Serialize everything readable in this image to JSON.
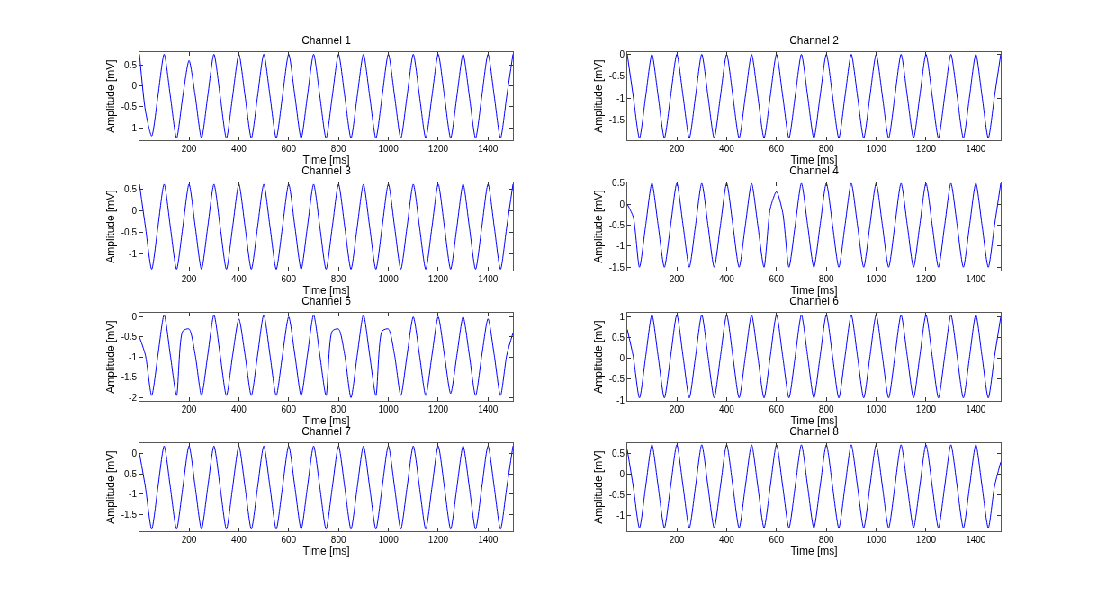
{
  "chart_data": [
    {
      "type": "line",
      "title": "Channel 1",
      "xlabel": "Time [ms]",
      "ylabel": "Amplitude [mV]",
      "xlim": [
        1,
        1500
      ],
      "xticks": [
        200,
        400,
        600,
        800,
        1000,
        1200,
        1400
      ],
      "ylim": [
        -1.3,
        0.8
      ],
      "yticks": [
        -1,
        -0.5,
        0,
        0.5
      ],
      "x": [
        1,
        25,
        50,
        75,
        100,
        125,
        150,
        175,
        200,
        225,
        250,
        275,
        300,
        325,
        350,
        375,
        400,
        425,
        450,
        475,
        500,
        525,
        550,
        575,
        600,
        625,
        650,
        675,
        700,
        725,
        750,
        775,
        800,
        825,
        850,
        875,
        900,
        925,
        950,
        975,
        1000,
        1025,
        1050,
        1075,
        1100,
        1125,
        1150,
        1175,
        1200,
        1225,
        1250,
        1275,
        1300,
        1325,
        1350,
        1375,
        1400,
        1425,
        1450,
        1475,
        1500
      ],
      "series": [
        {
          "color": "#0000ff",
          "values": [
            0.75,
            -0.6,
            -1.2,
            -0.25,
            0.75,
            -0.25,
            -1.25,
            -0.25,
            0.6,
            -0.25,
            -1.25,
            -0.25,
            0.75,
            -0.25,
            -1.25,
            -0.25,
            0.75,
            -0.25,
            -1.25,
            -0.25,
            0.75,
            -0.25,
            -1.25,
            -0.25,
            0.75,
            -0.25,
            -1.25,
            -0.25,
            0.75,
            -0.25,
            -1.25,
            -0.25,
            0.75,
            -0.25,
            -1.25,
            -0.25,
            0.75,
            -0.25,
            -1.25,
            -0.25,
            0.75,
            -0.25,
            -1.25,
            -0.25,
            0.75,
            -0.25,
            -1.25,
            -0.25,
            0.75,
            -0.25,
            -1.25,
            -0.25,
            0.75,
            -0.25,
            -1.25,
            -0.25,
            0.75,
            -0.25,
            -1.25,
            -0.25,
            0.75
          ]
        }
      ]
    },
    {
      "type": "line",
      "title": "Channel 2",
      "xlabel": "Time [ms]",
      "ylabel": "Amplitude [mV]",
      "xlim": [
        1,
        1500
      ],
      "xticks": [
        200,
        400,
        600,
        800,
        1000,
        1200,
        1400
      ],
      "ylim": [
        -1.95,
        0.05
      ],
      "yticks": [
        -1.5,
        -1,
        -0.5,
        0
      ],
      "x": [
        1,
        25,
        50,
        75,
        100,
        125,
        150,
        175,
        200,
        225,
        250,
        275,
        300,
        325,
        350,
        375,
        400,
        425,
        450,
        475,
        500,
        525,
        550,
        575,
        600,
        625,
        650,
        675,
        700,
        725,
        750,
        775,
        800,
        825,
        850,
        875,
        900,
        925,
        950,
        975,
        1000,
        1025,
        1050,
        1075,
        1100,
        1125,
        1150,
        1175,
        1200,
        1225,
        1250,
        1275,
        1300,
        1325,
        1350,
        1375,
        1400,
        1425,
        1450,
        1475,
        1500
      ],
      "series": [
        {
          "color": "#0000ff",
          "values": [
            0,
            -0.95,
            -1.9,
            -0.95,
            0,
            -0.95,
            -1.9,
            -0.95,
            0,
            -0.95,
            -1.9,
            -0.95,
            0,
            -0.95,
            -1.9,
            -0.95,
            0,
            -0.95,
            -1.9,
            -0.95,
            0,
            -0.95,
            -1.9,
            -0.95,
            0,
            -0.95,
            -1.9,
            -0.95,
            0,
            -0.95,
            -1.9,
            -0.95,
            0,
            -0.95,
            -1.9,
            -0.95,
            0,
            -0.95,
            -1.9,
            -0.95,
            0,
            -0.95,
            -1.9,
            -0.95,
            0,
            -0.95,
            -1.9,
            -0.95,
            0,
            -0.95,
            -1.9,
            -0.95,
            0,
            -0.95,
            -1.9,
            -0.95,
            0,
            -0.95,
            -1.9,
            -0.95,
            0
          ]
        }
      ]
    },
    {
      "type": "line",
      "title": "Channel 3",
      "xlabel": "Time [ms]",
      "ylabel": "Amplitude [mV]",
      "xlim": [
        1,
        1500
      ],
      "xticks": [
        200,
        400,
        600,
        800,
        1000,
        1200,
        1400
      ],
      "ylim": [
        -1.38,
        0.66
      ],
      "yticks": [
        -1,
        -0.5,
        0,
        0.5
      ],
      "x": [
        1,
        25,
        50,
        75,
        100,
        125,
        150,
        175,
        200,
        225,
        250,
        275,
        300,
        325,
        350,
        375,
        400,
        425,
        450,
        475,
        500,
        525,
        550,
        575,
        600,
        625,
        650,
        675,
        700,
        725,
        750,
        775,
        800,
        825,
        850,
        875,
        900,
        925,
        950,
        975,
        1000,
        1025,
        1050,
        1075,
        1100,
        1125,
        1150,
        1175,
        1200,
        1225,
        1250,
        1275,
        1300,
        1325,
        1350,
        1375,
        1400,
        1425,
        1450,
        1475,
        1500
      ],
      "series": [
        {
          "color": "#0000ff",
          "values": [
            0.62,
            -0.37,
            -1.35,
            -0.37,
            0.62,
            -0.37,
            -1.35,
            -0.37,
            0.62,
            -0.37,
            -1.35,
            -0.37,
            0.62,
            -0.37,
            -1.35,
            -0.37,
            0.62,
            -0.37,
            -1.35,
            -0.37,
            0.62,
            -0.37,
            -1.35,
            -0.37,
            0.62,
            -0.37,
            -1.35,
            -0.37,
            0.62,
            -0.37,
            -1.35,
            -0.37,
            0.62,
            -0.37,
            -1.35,
            -0.37,
            0.62,
            -0.37,
            -1.35,
            -0.37,
            0.62,
            -0.37,
            -1.35,
            -0.37,
            0.62,
            -0.37,
            -1.35,
            -0.37,
            0.62,
            -0.37,
            -1.35,
            -0.37,
            0.62,
            -0.37,
            -1.35,
            -0.37,
            0.62,
            -0.37,
            -1.35,
            -0.37,
            0.62
          ]
        }
      ]
    },
    {
      "type": "line",
      "title": "Channel 4",
      "xlabel": "Time [ms]",
      "ylabel": "Amplitude [mV]",
      "xlim": [
        1,
        1500
      ],
      "xticks": [
        200,
        400,
        600,
        800,
        1000,
        1200,
        1400
      ],
      "ylim": [
        -1.58,
        0.52
      ],
      "yticks": [
        -1.5,
        -1,
        -0.5,
        0,
        0.5
      ],
      "x": [
        1,
        25,
        50,
        75,
        100,
        125,
        150,
        175,
        200,
        225,
        250,
        275,
        300,
        325,
        350,
        375,
        400,
        425,
        450,
        475,
        500,
        525,
        550,
        575,
        600,
        625,
        650,
        675,
        700,
        725,
        750,
        775,
        800,
        825,
        850,
        875,
        900,
        925,
        950,
        975,
        1000,
        1025,
        1050,
        1075,
        1100,
        1125,
        1150,
        1175,
        1200,
        1225,
        1250,
        1275,
        1300,
        1325,
        1350,
        1375,
        1400,
        1425,
        1450,
        1475,
        1500
      ],
      "series": [
        {
          "color": "#0000ff",
          "values": [
            0,
            -0.3,
            -1.5,
            -0.5,
            0.5,
            -0.5,
            -1.5,
            -0.5,
            0.5,
            -0.5,
            -1.5,
            -0.5,
            0.5,
            -0.5,
            -1.5,
            -0.5,
            0.5,
            -0.5,
            -1.5,
            -0.5,
            0.5,
            -0.5,
            -1.5,
            -0.1,
            0.3,
            -0.2,
            -1.5,
            -0.5,
            0.5,
            -0.5,
            -1.5,
            -0.5,
            0.5,
            -0.5,
            -1.5,
            -0.5,
            0.5,
            -0.5,
            -1.5,
            -0.5,
            0.5,
            -0.5,
            -1.5,
            -0.5,
            0.5,
            -0.5,
            -1.5,
            -0.5,
            0.5,
            -0.5,
            -1.5,
            -0.5,
            0.5,
            -0.5,
            -1.5,
            -0.5,
            0.5,
            -0.5,
            -1.5,
            -0.5,
            0.5
          ]
        }
      ]
    },
    {
      "type": "line",
      "title": "Channel 5",
      "xlabel": "Time [ms]",
      "ylabel": "Amplitude [mV]",
      "xlim": [
        1,
        1500
      ],
      "xticks": [
        200,
        400,
        600,
        800,
        1000,
        1200,
        1400
      ],
      "ylim": [
        -2.08,
        0.1
      ],
      "yticks": [
        -2,
        -1.5,
        -1,
        -0.5,
        0
      ],
      "x": [
        1,
        25,
        50,
        75,
        100,
        125,
        150,
        175,
        200,
        225,
        250,
        275,
        300,
        325,
        350,
        375,
        400,
        425,
        450,
        475,
        500,
        525,
        550,
        575,
        600,
        625,
        650,
        675,
        700,
        725,
        750,
        775,
        800,
        825,
        850,
        875,
        900,
        925,
        950,
        975,
        1000,
        1025,
        1050,
        1075,
        1100,
        1125,
        1150,
        1175,
        1200,
        1225,
        1250,
        1275,
        1300,
        1325,
        1350,
        1375,
        1400,
        1425,
        1450,
        1475,
        1500
      ],
      "series": [
        {
          "color": "#0000ff",
          "values": [
            -0.5,
            -0.95,
            -1.95,
            -0.95,
            0.05,
            -0.95,
            -1.95,
            -0.35,
            -0.3,
            -0.95,
            -1.95,
            -0.95,
            0.05,
            -0.95,
            -1.95,
            -0.95,
            -0.05,
            -0.95,
            -1.95,
            -0.95,
            0.05,
            -0.95,
            -1.95,
            -0.95,
            0,
            -0.95,
            -1.95,
            -0.95,
            0.05,
            -0.95,
            -1.95,
            -0.35,
            -0.3,
            -0.95,
            -2,
            -0.95,
            0.05,
            -0.95,
            -1.95,
            -0.35,
            -0.3,
            -0.95,
            -1.95,
            -0.95,
            0,
            -0.95,
            -1.95,
            -0.95,
            0,
            -0.95,
            -1.9,
            -0.95,
            0,
            -0.95,
            -1.95,
            -0.95,
            -0.05,
            -0.95,
            -1.95,
            -0.95,
            -0.4
          ]
        }
      ]
    },
    {
      "type": "line",
      "title": "Channel 6",
      "xlabel": "Time [ms]",
      "ylabel": "Amplitude [mV]",
      "xlim": [
        1,
        1500
      ],
      "xticks": [
        200,
        400,
        600,
        800,
        1000,
        1200,
        1400
      ],
      "ylim": [
        -1.02,
        1.1
      ],
      "yticks": [
        -1,
        -0.5,
        0,
        0.5,
        1
      ],
      "x": [
        1,
        25,
        50,
        75,
        100,
        125,
        150,
        175,
        200,
        225,
        250,
        275,
        300,
        325,
        350,
        375,
        400,
        425,
        450,
        475,
        500,
        525,
        550,
        575,
        600,
        625,
        650,
        675,
        700,
        725,
        750,
        775,
        800,
        825,
        850,
        875,
        900,
        925,
        950,
        975,
        1000,
        1025,
        1050,
        1075,
        1100,
        1125,
        1150,
        1175,
        1200,
        1225,
        1250,
        1275,
        1300,
        1325,
        1350,
        1375,
        1400,
        1425,
        1450,
        1475,
        1500
      ],
      "series": [
        {
          "color": "#0000ff",
          "values": [
            0.7,
            0.05,
            -0.95,
            0.05,
            1.05,
            0.05,
            -0.95,
            0.05,
            1.05,
            0.05,
            -0.95,
            0.05,
            1.05,
            0.05,
            -0.95,
            0.05,
            1.05,
            0.05,
            -0.95,
            0.05,
            1.05,
            0.05,
            -0.95,
            0.05,
            1.05,
            0.05,
            -0.95,
            0.05,
            1.05,
            0.05,
            -0.95,
            0.05,
            1.05,
            0.05,
            -0.95,
            0.05,
            1.05,
            0.05,
            -0.95,
            0.05,
            1.05,
            0.05,
            -0.95,
            0.05,
            1.05,
            0.05,
            -0.95,
            0.05,
            1.05,
            0.05,
            -0.95,
            0.05,
            1.05,
            0.05,
            -0.95,
            0.05,
            1.05,
            0.05,
            -0.95,
            0.05,
            1.0
          ]
        }
      ]
    },
    {
      "type": "line",
      "title": "Channel 7",
      "xlabel": "Time [ms]",
      "ylabel": "Amplitude [mV]",
      "xlim": [
        1,
        1500
      ],
      "xticks": [
        200,
        400,
        600,
        800,
        1000,
        1200,
        1400
      ],
      "ylim": [
        -1.9,
        0.25
      ],
      "yticks": [
        -1.5,
        -1,
        -0.5,
        0
      ],
      "x": [
        1,
        25,
        50,
        75,
        100,
        125,
        150,
        175,
        200,
        225,
        250,
        275,
        300,
        325,
        350,
        375,
        400,
        425,
        450,
        475,
        500,
        525,
        550,
        575,
        600,
        625,
        650,
        675,
        700,
        725,
        750,
        775,
        800,
        825,
        850,
        875,
        900,
        925,
        950,
        975,
        1000,
        1025,
        1050,
        1075,
        1100,
        1125,
        1150,
        1175,
        1200,
        1225,
        1250,
        1275,
        1300,
        1325,
        1350,
        1375,
        1400,
        1425,
        1450,
        1475,
        1500
      ],
      "series": [
        {
          "color": "#0000ff",
          "values": [
            0,
            -0.83,
            -1.85,
            -0.83,
            0.18,
            -0.83,
            -1.85,
            -0.83,
            0.18,
            -0.83,
            -1.85,
            -0.83,
            0.18,
            -0.83,
            -1.85,
            -0.83,
            0.18,
            -0.83,
            -1.85,
            -0.83,
            0.18,
            -0.83,
            -1.85,
            -0.83,
            0.18,
            -0.83,
            -1.85,
            -0.83,
            0.18,
            -0.83,
            -1.85,
            -0.83,
            0.18,
            -0.83,
            -1.85,
            -0.83,
            0.18,
            -0.83,
            -1.85,
            -0.83,
            0.18,
            -0.83,
            -1.85,
            -0.83,
            0.18,
            -0.83,
            -1.85,
            -0.83,
            0.18,
            -0.83,
            -1.85,
            -0.83,
            0.18,
            -0.83,
            -1.85,
            -0.83,
            0.18,
            -0.83,
            -1.85,
            -0.83,
            0.18
          ]
        }
      ]
    },
    {
      "type": "line",
      "title": "Channel 8",
      "xlabel": "Time [ms]",
      "ylabel": "Amplitude [mV]",
      "xlim": [
        1,
        1500
      ],
      "xticks": [
        200,
        400,
        600,
        800,
        1000,
        1200,
        1400
      ],
      "ylim": [
        -1.38,
        0.76
      ],
      "yticks": [
        -1,
        -0.5,
        0,
        0.5
      ],
      "x": [
        1,
        25,
        50,
        75,
        100,
        125,
        150,
        175,
        200,
        225,
        250,
        275,
        300,
        325,
        350,
        375,
        400,
        425,
        450,
        475,
        500,
        525,
        550,
        575,
        600,
        625,
        650,
        675,
        700,
        725,
        750,
        775,
        800,
        825,
        850,
        875,
        900,
        925,
        950,
        975,
        1000,
        1025,
        1050,
        1075,
        1100,
        1125,
        1150,
        1175,
        1200,
        1225,
        1250,
        1275,
        1300,
        1325,
        1350,
        1375,
        1400,
        1425,
        1450,
        1475,
        1500
      ],
      "series": [
        {
          "color": "#0000ff",
          "values": [
            0.6,
            -0.29,
            -1.3,
            -0.29,
            0.72,
            -0.29,
            -1.3,
            -0.29,
            0.72,
            -0.29,
            -1.3,
            -0.29,
            0.72,
            -0.29,
            -1.3,
            -0.29,
            0.72,
            -0.29,
            -1.3,
            -0.29,
            0.72,
            -0.29,
            -1.3,
            -0.29,
            0.72,
            -0.29,
            -1.3,
            -0.29,
            0.72,
            -0.29,
            -1.3,
            -0.29,
            0.72,
            -0.29,
            -1.3,
            -0.29,
            0.72,
            -0.29,
            -1.3,
            -0.29,
            0.72,
            -0.29,
            -1.3,
            -0.29,
            0.72,
            -0.29,
            -1.3,
            -0.29,
            0.72,
            -0.29,
            -1.3,
            -0.29,
            0.72,
            -0.29,
            -1.3,
            -0.29,
            0.72,
            -0.29,
            -1.3,
            -0.29,
            0.3
          ]
        }
      ]
    }
  ]
}
